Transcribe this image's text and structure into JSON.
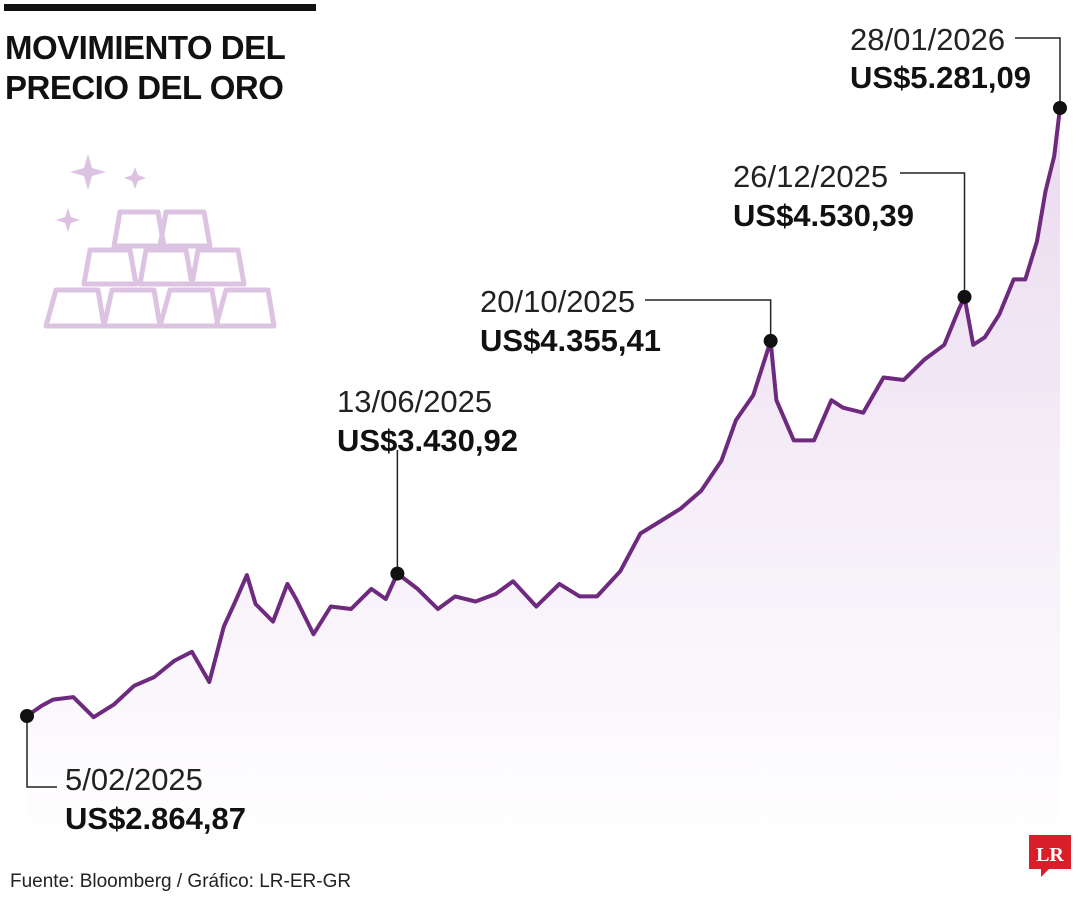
{
  "header": {
    "title_line1": "MOVIMIENTO DEL",
    "title_line2": "PRECIO DEL ORO"
  },
  "footer": {
    "source": "Fuente: Bloomberg / Gráfico: LR-ER-GR",
    "logo_text": "LR"
  },
  "colors": {
    "line": "#6e2a7e",
    "area_top": "#e9d8ee",
    "area_bottom": "#ffffff",
    "marker": "#111111",
    "icon": "#dcc3e2",
    "logo": "#d91e2a"
  },
  "icon": "gold-bars-icon",
  "chart_data": {
    "type": "area",
    "title": "MOVIMIENTO DEL PRECIO DEL ORO",
    "xlabel": "",
    "ylabel": "",
    "currency": "US$",
    "grid": false,
    "ylim": [
      2500,
      5400
    ],
    "x_range": [
      "2025-02-05",
      "2026-01-28"
    ],
    "annotations": [
      {
        "date": "5/02/2025",
        "value_label": "US$2.864,87",
        "x": "2025-02-05",
        "y": 2864.87
      },
      {
        "date": "13/06/2025",
        "value_label": "US$3.430,92",
        "x": "2025-06-13",
        "y": 3430.92
      },
      {
        "date": "20/10/2025",
        "value_label": "US$4.355,41",
        "x": "2025-10-20",
        "y": 4355.41
      },
      {
        "date": "26/12/2025",
        "value_label": "US$4.530,39",
        "x": "2025-12-26",
        "y": 4530.39
      },
      {
        "date": "28/01/2026",
        "value_label": "US$5.281,09",
        "x": "2026-01-28",
        "y": 5281.09
      }
    ],
    "series": [
      {
        "points": [
          [
            "2025-02-05",
            2865
          ],
          [
            "2025-02-10",
            2905
          ],
          [
            "2025-02-14",
            2930
          ],
          [
            "2025-02-21",
            2940
          ],
          [
            "2025-02-28",
            2860
          ],
          [
            "2025-03-07",
            2910
          ],
          [
            "2025-03-14",
            2985
          ],
          [
            "2025-03-21",
            3020
          ],
          [
            "2025-03-28",
            3085
          ],
          [
            "2025-04-03",
            3120
          ],
          [
            "2025-04-09",
            3000
          ],
          [
            "2025-04-14",
            3220
          ],
          [
            "2025-04-18",
            3320
          ],
          [
            "2025-04-22",
            3425
          ],
          [
            "2025-04-25",
            3310
          ],
          [
            "2025-05-01",
            3240
          ],
          [
            "2025-05-06",
            3390
          ],
          [
            "2025-05-09",
            3330
          ],
          [
            "2025-05-15",
            3190
          ],
          [
            "2025-05-21",
            3300
          ],
          [
            "2025-05-28",
            3290
          ],
          [
            "2025-06-04",
            3370
          ],
          [
            "2025-06-09",
            3330
          ],
          [
            "2025-06-13",
            3431
          ],
          [
            "2025-06-20",
            3370
          ],
          [
            "2025-06-27",
            3290
          ],
          [
            "2025-07-03",
            3340
          ],
          [
            "2025-07-10",
            3320
          ],
          [
            "2025-07-17",
            3350
          ],
          [
            "2025-07-23",
            3400
          ],
          [
            "2025-07-31",
            3300
          ],
          [
            "2025-08-08",
            3390
          ],
          [
            "2025-08-15",
            3340
          ],
          [
            "2025-08-21",
            3340
          ],
          [
            "2025-08-29",
            3440
          ],
          [
            "2025-09-05",
            3590
          ],
          [
            "2025-09-12",
            3640
          ],
          [
            "2025-09-19",
            3690
          ],
          [
            "2025-09-26",
            3760
          ],
          [
            "2025-10-03",
            3880
          ],
          [
            "2025-10-08",
            4040
          ],
          [
            "2025-10-14",
            4140
          ],
          [
            "2025-10-20",
            4355
          ],
          [
            "2025-10-22",
            4120
          ],
          [
            "2025-10-28",
            3960
          ],
          [
            "2025-11-04",
            3960
          ],
          [
            "2025-11-10",
            4120
          ],
          [
            "2025-11-14",
            4090
          ],
          [
            "2025-11-21",
            4070
          ],
          [
            "2025-11-28",
            4210
          ],
          [
            "2025-12-05",
            4200
          ],
          [
            "2025-12-12",
            4280
          ],
          [
            "2025-12-19",
            4340
          ],
          [
            "2025-12-24",
            4480
          ],
          [
            "2025-12-26",
            4530
          ],
          [
            "2025-12-29",
            4340
          ],
          [
            "2026-01-02",
            4370
          ],
          [
            "2026-01-07",
            4460
          ],
          [
            "2026-01-12",
            4600
          ],
          [
            "2026-01-16",
            4600
          ],
          [
            "2026-01-20",
            4750
          ],
          [
            "2026-01-23",
            4950
          ],
          [
            "2026-01-26",
            5090
          ],
          [
            "2026-01-28",
            5281
          ]
        ]
      }
    ]
  }
}
